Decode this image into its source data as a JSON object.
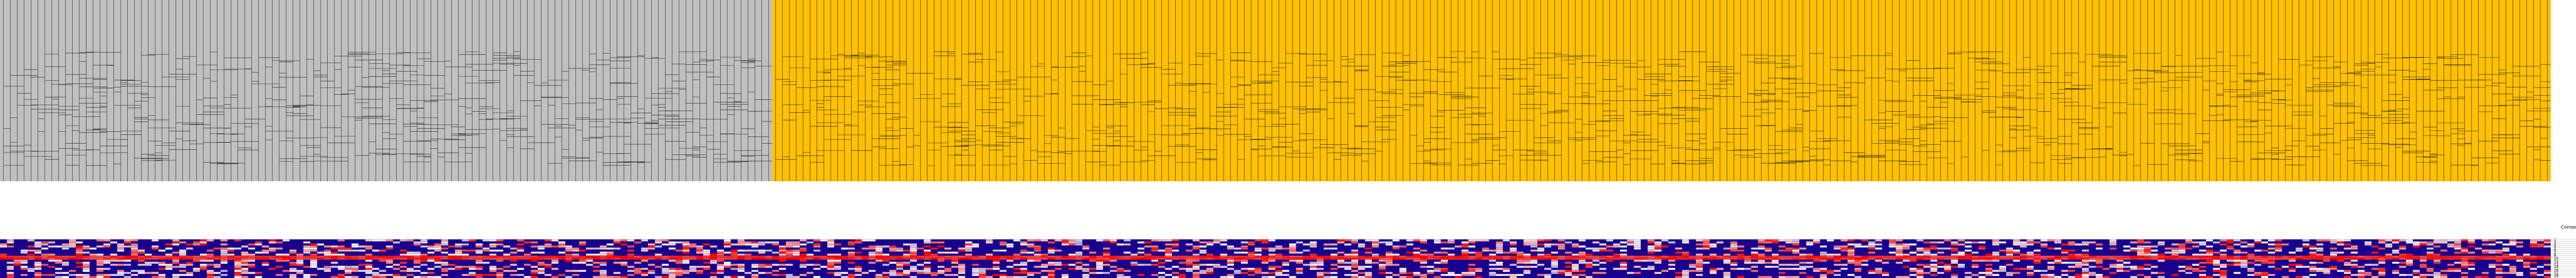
{
  "chart_data": {
    "type": "heatmap",
    "title": "",
    "legend_title": "Consensus Cluster",
    "legend_position": "top-right",
    "grid": true,
    "dendrogram": {
      "samples": 370,
      "groups": [
        {
          "label": "1",
          "color": "#c0c0c0",
          "count": 112
        },
        {
          "label": "2",
          "color": "#ffc000",
          "count": 258
        }
      ]
    },
    "heatmap": {
      "rows": [
        "1",
        "2",
        "3",
        "4",
        "5",
        "6",
        "7",
        "8",
        "9",
        "10",
        "11",
        "12",
        "13",
        "14",
        "15",
        "16",
        "17",
        "18",
        "19"
      ],
      "columns": 370,
      "value_range": [
        -1,
        1
      ],
      "colorscale": [
        "#1a0096",
        "#ffffff",
        "#ff0000"
      ]
    }
  },
  "colors": {
    "cluster_1": "#c0c0c0",
    "cluster_2": "#ffc000",
    "low": "#1a0096",
    "mid": "#ffffff",
    "high": "#ff0000",
    "grid": "#000000"
  }
}
